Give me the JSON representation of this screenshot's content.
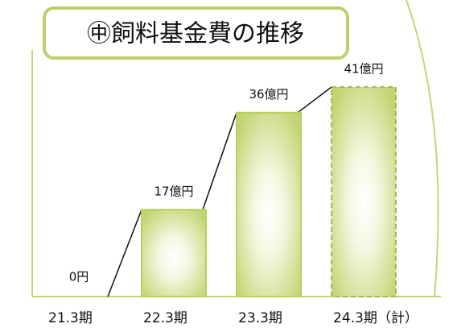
{
  "chart_data": {
    "type": "bar",
    "title": "㊥飼料基金費の推移",
    "categories": [
      "21.3期",
      "22.3期",
      "23.3期",
      "24.3期（計）"
    ],
    "values": [
      0,
      17,
      36,
      41
    ],
    "value_labels": [
      "0円",
      "17億円",
      "36億円",
      "41億円"
    ],
    "color": "#b9cf5f",
    "ylim": [
      0,
      41
    ]
  }
}
